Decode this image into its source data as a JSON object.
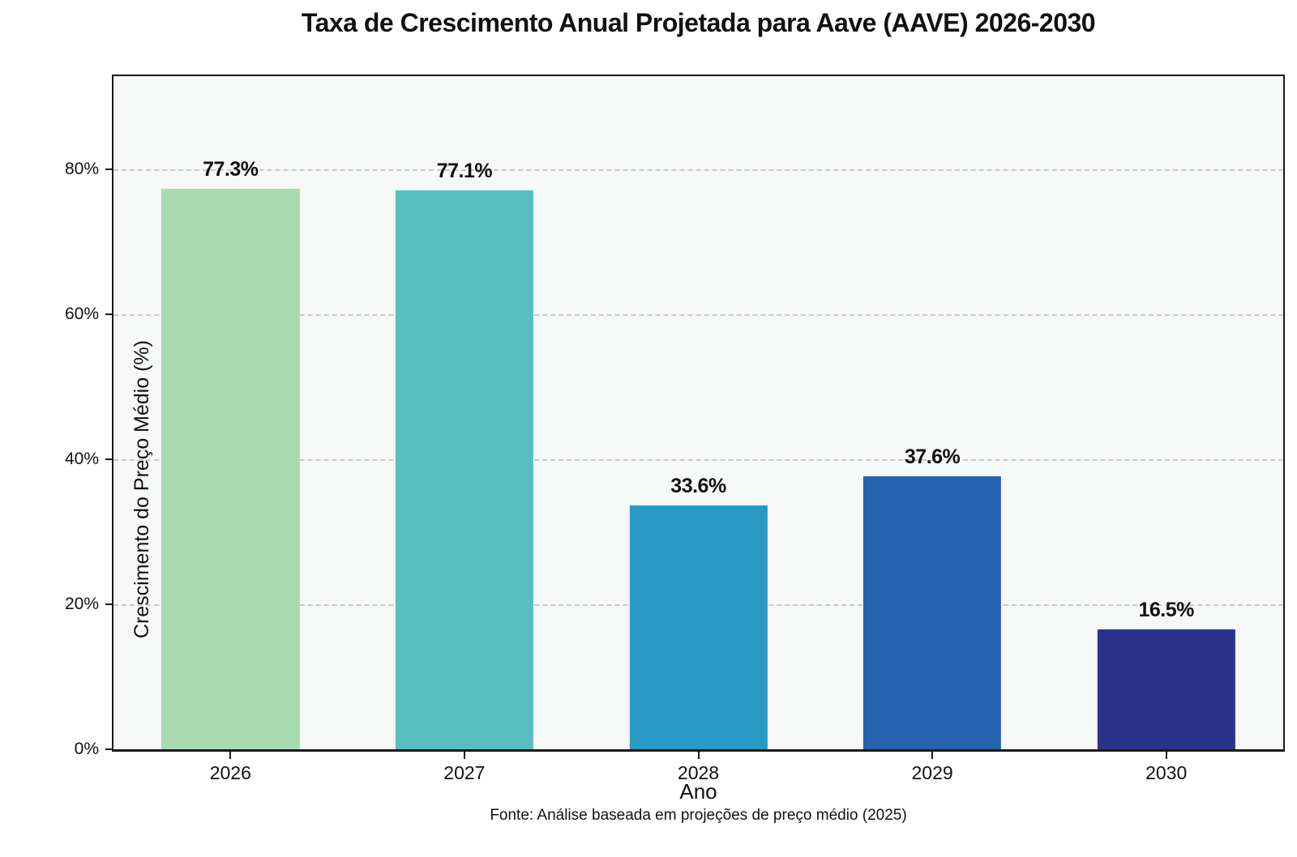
{
  "chart_data": {
    "type": "bar",
    "title": "Taxa de Crescimento Anual Projetada para Aave (AAVE) 2026-2030",
    "categories": [
      "2026",
      "2027",
      "2028",
      "2029",
      "2030"
    ],
    "values": [
      77.3,
      77.1,
      33.6,
      37.6,
      16.5
    ],
    "value_labels": [
      "77.3%",
      "77.1%",
      "33.6%",
      "37.6%",
      "16.5%"
    ],
    "bar_colors": [
      "#a8dbb0",
      "#58bfc0",
      "#2899c5",
      "#2563ae",
      "#283389"
    ],
    "xlabel": "Ano",
    "ylabel": "Crescimento do Preço Médio (%)",
    "ylim": [
      0,
      92.8
    ],
    "yticks": [
      0,
      20,
      40,
      60,
      80
    ],
    "ytick_labels": [
      "0%",
      "20%",
      "40%",
      "60%",
      "80%"
    ],
    "grid": "horizontal dashed at 20/40/60/80, on",
    "legend": "none",
    "bar_width_fraction": 0.59,
    "source_note": "Fonte: Análise baseada em projeções de preço médio (2025)",
    "colors": {
      "figure_background": "#ffffff",
      "plot_background": "#f7f8f8",
      "gridline": "#c9c9c9",
      "axis_border": "#1a1a1a",
      "text": "#111111"
    }
  }
}
